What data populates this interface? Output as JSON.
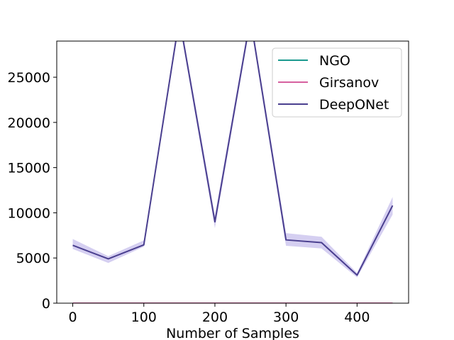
{
  "chart_data": {
    "type": "line",
    "title": "",
    "xlabel": "Number of Samples",
    "ylabel": "",
    "xlim": [
      -22.5,
      472.5
    ],
    "ylim": [
      0,
      29000
    ],
    "xticks": [
      0,
      100,
      200,
      300,
      400
    ],
    "xtick_labels": [
      "0",
      "100",
      "200",
      "300",
      "400"
    ],
    "yticks": [
      0,
      5000,
      10000,
      15000,
      20000,
      25000
    ],
    "ytick_labels": [
      "0",
      "5000",
      "10000",
      "15000",
      "20000",
      "25000"
    ],
    "grid": false,
    "legend_position": "top-right",
    "x": [
      0,
      50,
      100,
      150,
      200,
      250,
      300,
      350,
      400,
      450
    ],
    "series": [
      {
        "name": "NGO",
        "color": "#1a9a8f",
        "values": [
          0,
          0,
          0,
          0,
          0,
          0,
          0,
          0,
          0,
          0
        ]
      },
      {
        "name": "Girsanov",
        "color": "#d6609f",
        "values": [
          0,
          0,
          0,
          0,
          0,
          0,
          0,
          0,
          0,
          0
        ]
      },
      {
        "name": "DeepONet",
        "color": "#4a3f8f",
        "band_color": "#b3a8e6",
        "values": [
          6400,
          4900,
          6450,
          31500,
          9000,
          31500,
          7000,
          6700,
          3100,
          10800
        ],
        "lower": [
          6000,
          4450,
          6250,
          31000,
          8300,
          31000,
          6350,
          6050,
          2850,
          9800
        ],
        "upper": [
          7100,
          5200,
          6950,
          32000,
          9700,
          32000,
          7750,
          7350,
          3350,
          11750
        ]
      }
    ]
  }
}
